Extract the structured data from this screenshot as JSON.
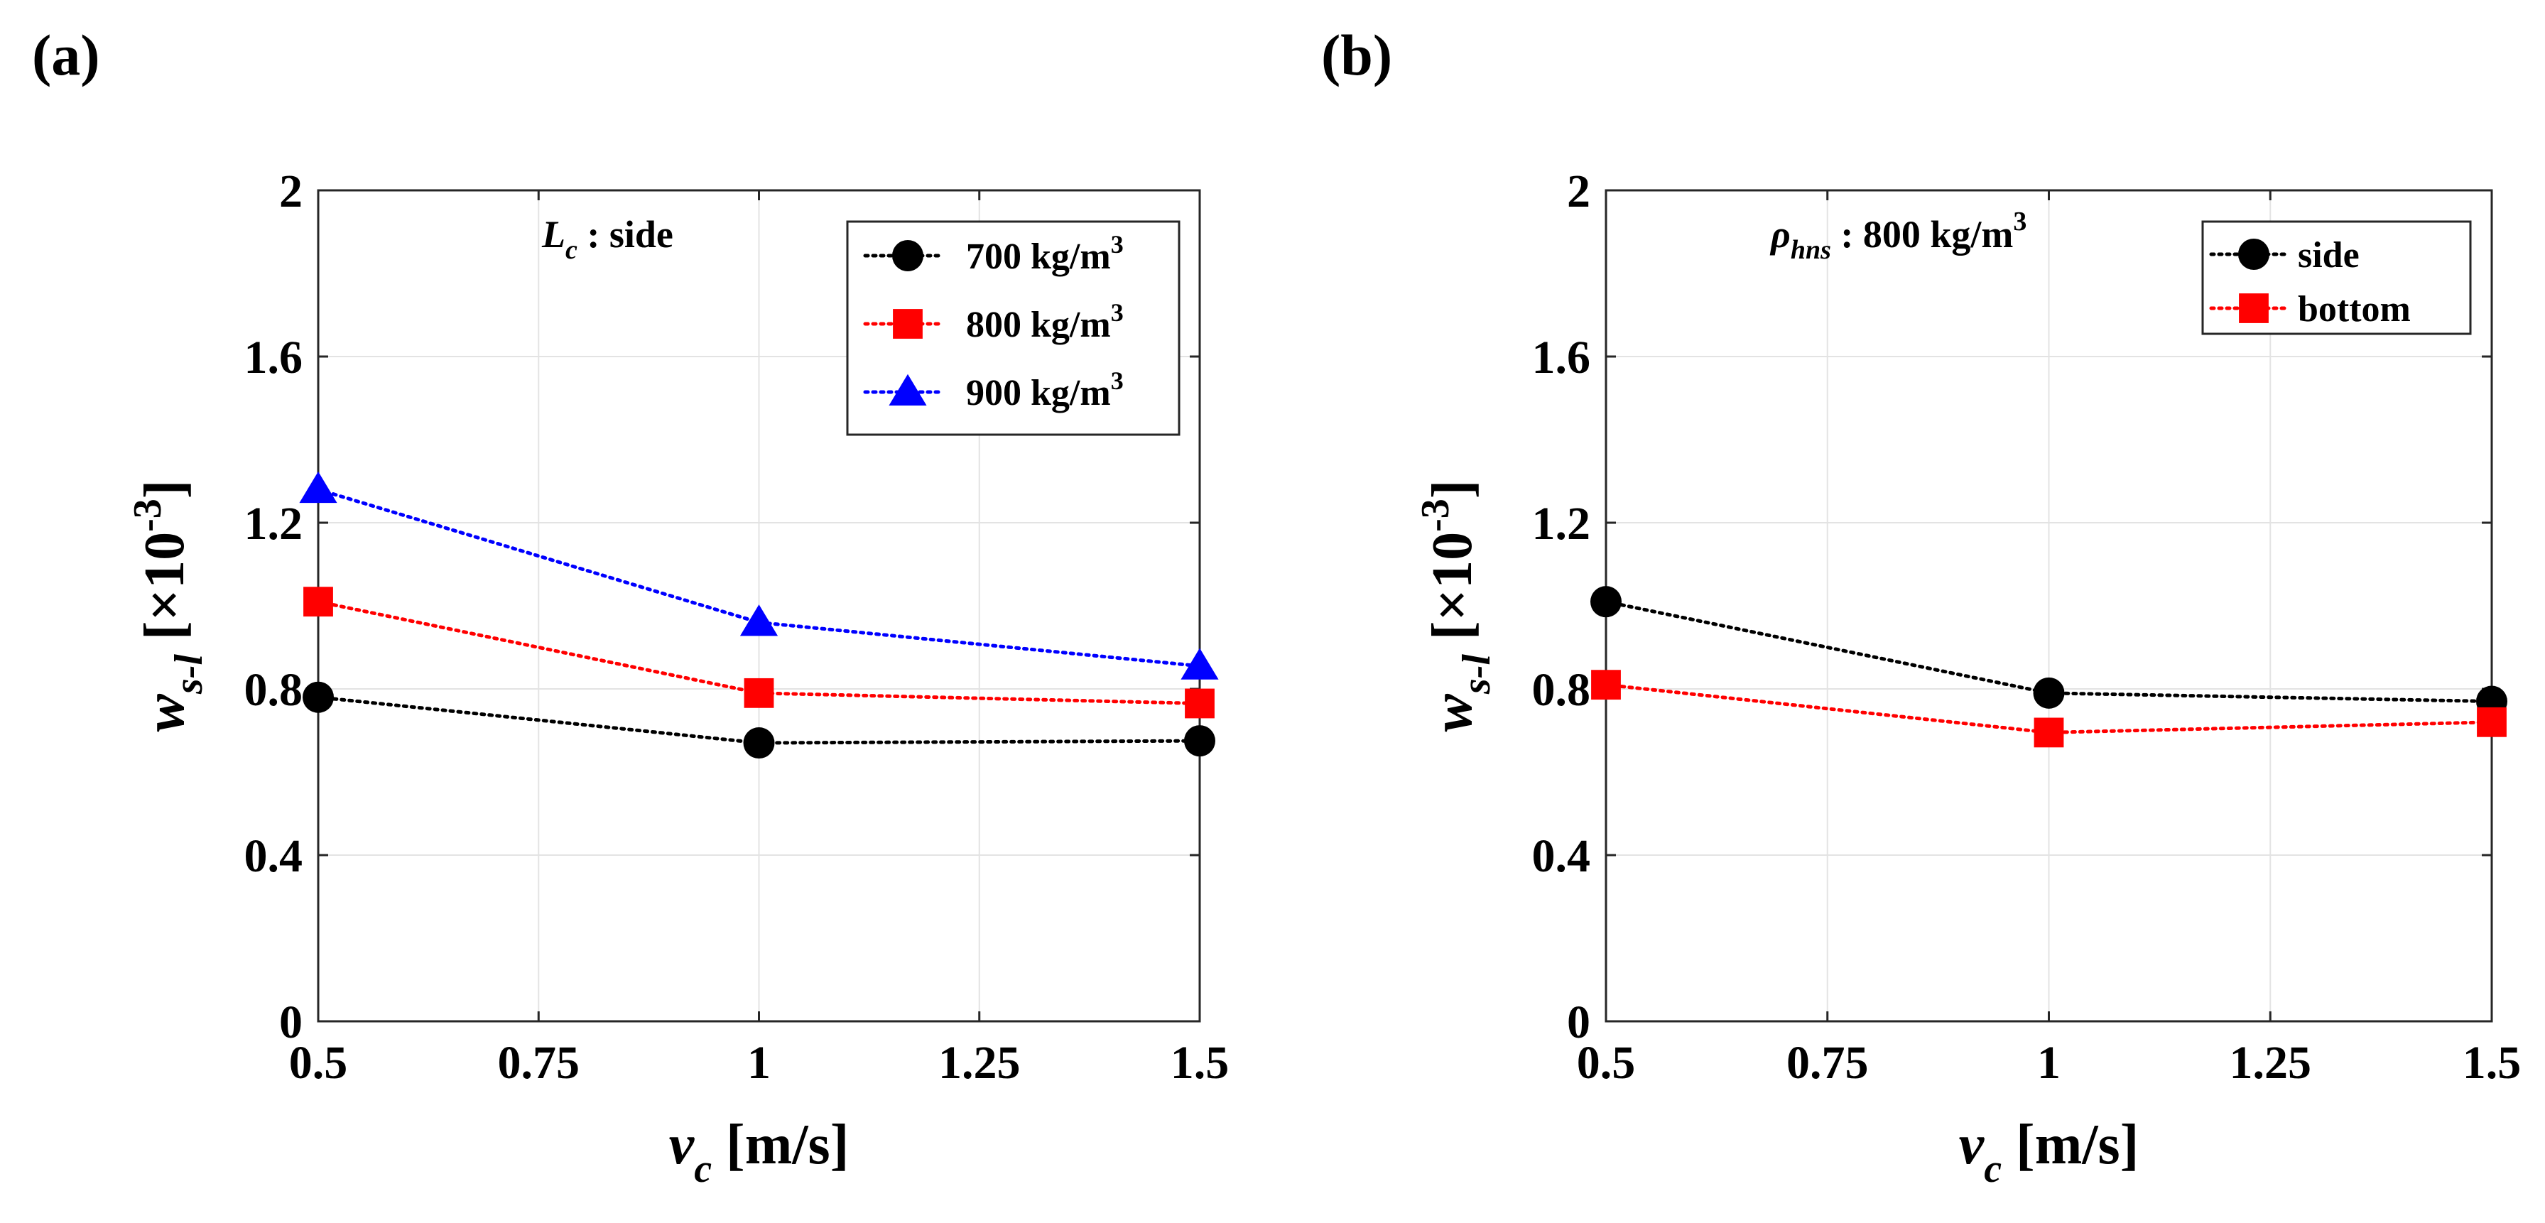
{
  "panels": [
    {
      "label": "(a)",
      "annotation": {
        "base": "L",
        "sub": "c",
        "rest": " : side"
      },
      "xlabel": {
        "base": "v",
        "sub": "c",
        "rest": " [m/s]"
      },
      "ylabel": {
        "base": "w",
        "sub": "s-l",
        "rest": " [×10",
        "sup": "-3",
        "end": "]"
      },
      "legend_position": "top-right"
    },
    {
      "label": "(b)",
      "annotation": {
        "base": "ρ",
        "sub": "hns",
        "rest": " : 800 kg/m",
        "sup": "3"
      },
      "xlabel": {
        "base": "v",
        "sub": "c",
        "rest": " [m/s]"
      },
      "ylabel": {
        "base": "w",
        "sub": "s-l",
        "rest": " [×10",
        "sup": "-3",
        "end": "]"
      },
      "legend_position": "top-right"
    }
  ],
  "chart_data": [
    {
      "type": "line",
      "x": [
        0.5,
        1,
        1.5
      ],
      "xlim": [
        0.5,
        1.5
      ],
      "ylim": [
        0,
        2
      ],
      "xticks": [
        "0.5",
        "0.75",
        "1",
        "1.25",
        "1.5"
      ],
      "xtick_values": [
        0.5,
        0.75,
        1,
        1.25,
        1.5
      ],
      "yticks": [
        "0",
        "0.4",
        "0.8",
        "1.2",
        "1.6",
        "2"
      ],
      "ytick_values": [
        0,
        0.4,
        0.8,
        1.2,
        1.6,
        2
      ],
      "grid": true,
      "series": [
        {
          "name": "700 kg/m",
          "name_sup": "3",
          "values": [
            0.78,
            0.67,
            0.675
          ],
          "color": "#000000",
          "marker": "circle"
        },
        {
          "name": "800 kg/m",
          "name_sup": "3",
          "values": [
            1.01,
            0.79,
            0.765
          ],
          "color": "#ff0000",
          "marker": "square"
        },
        {
          "name": "900 kg/m",
          "name_sup": "3",
          "values": [
            1.28,
            0.96,
            0.855
          ],
          "color": "#0000ff",
          "marker": "triangle"
        }
      ]
    },
    {
      "type": "line",
      "x": [
        0.5,
        1,
        1.5
      ],
      "xlim": [
        0.5,
        1.5
      ],
      "ylim": [
        0,
        2
      ],
      "xticks": [
        "0.5",
        "0.75",
        "1",
        "1.25",
        "1.5"
      ],
      "xtick_values": [
        0.5,
        0.75,
        1,
        1.25,
        1.5
      ],
      "yticks": [
        "0",
        "0.4",
        "0.8",
        "1.2",
        "1.6",
        "2"
      ],
      "ytick_values": [
        0,
        0.4,
        0.8,
        1.2,
        1.6,
        2
      ],
      "grid": true,
      "series": [
        {
          "name": "side",
          "values": [
            1.01,
            0.79,
            0.77
          ],
          "color": "#000000",
          "marker": "circle"
        },
        {
          "name": "bottom",
          "values": [
            0.81,
            0.695,
            0.72
          ],
          "color": "#ff0000",
          "marker": "square"
        }
      ]
    }
  ]
}
